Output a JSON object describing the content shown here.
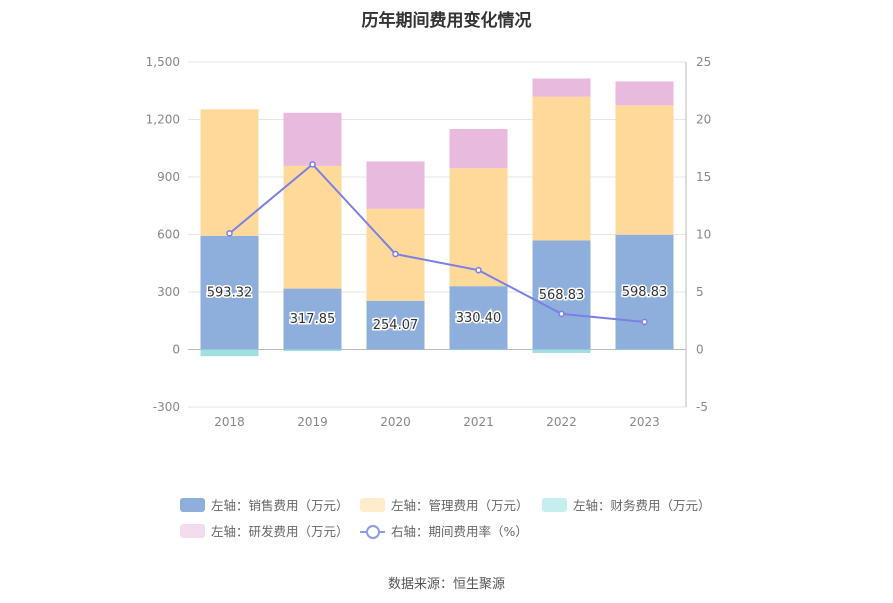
{
  "chart_data": {
    "type": "bar",
    "title": "历年期间费用变化情况",
    "categories": [
      "2018",
      "2019",
      "2020",
      "2021",
      "2022",
      "2023"
    ],
    "left_axis": {
      "ticks": [
        "-300",
        "0",
        "300",
        "600",
        "900",
        "1,200",
        "1,500"
      ],
      "range": [
        -300,
        1500
      ]
    },
    "right_axis": {
      "ticks": [
        "-5",
        "0",
        "5",
        "10",
        "15",
        "20",
        "25"
      ],
      "range": [
        -5,
        25
      ]
    },
    "series": [
      {
        "name": "左轴：销售费用（万元）",
        "kind": "bar",
        "color": "#8eaedc",
        "values": [
          593.32,
          317.85,
          254.07,
          330.4,
          568.83,
          598.83
        ],
        "labels": [
          "593.32",
          "317.85",
          "254.07",
          "330.40",
          "568.83",
          "598.83"
        ]
      },
      {
        "name": "左轴：管理费用（万元）",
        "kind": "bar",
        "color": "#fed99a",
        "values": [
          660,
          640,
          480,
          615,
          750,
          675
        ]
      },
      {
        "name": "左轴：财务费用（万元）",
        "kind": "bar",
        "color": "#9edfe0",
        "values": [
          -35,
          -8,
          0,
          -3,
          -18,
          -3
        ]
      },
      {
        "name": "左轴：研发费用（万元）",
        "kind": "bar",
        "color": "#e8bade",
        "values": [
          0,
          277,
          247,
          205,
          95,
          125
        ]
      },
      {
        "name": "右轴：期间费用率（%）",
        "kind": "line",
        "axis": "right",
        "color": "#7b7fe6",
        "values": [
          10.1,
          16.1,
          8.3,
          6.9,
          3.1,
          2.4
        ]
      }
    ],
    "legend_position": "bottom",
    "grid": true
  },
  "source": "数据来源：恒生聚源"
}
